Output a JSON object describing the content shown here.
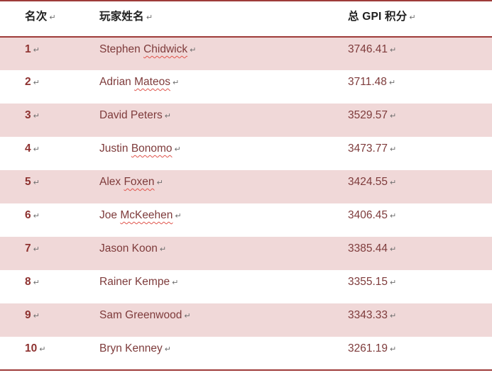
{
  "document": {
    "type": "word-processor-table",
    "formatting_marks_visible": true
  },
  "header": {
    "rank": "名次",
    "player": "玩家姓名",
    "score": "总 GPI 积分"
  },
  "paragraph_mark": "↵",
  "rows": [
    {
      "rank": "1",
      "name": "Stephen ",
      "misspelled": "Chidwick",
      "score": "3746.41"
    },
    {
      "rank": "2",
      "name": "Adrian ",
      "misspelled": "Mateos",
      "score": "3711.48"
    },
    {
      "rank": "3",
      "name": "David Peters",
      "misspelled": "",
      "score": "3529.57"
    },
    {
      "rank": "4",
      "name": "Justin ",
      "misspelled": "Bonomo",
      "score": "3473.77"
    },
    {
      "rank": "5",
      "name": "Alex ",
      "misspelled": "Foxen",
      "score": "3424.55"
    },
    {
      "rank": "6",
      "name": "Joe ",
      "misspelled": "McKeehen",
      "score": "3406.45"
    },
    {
      "rank": "7",
      "name": "Jason Koon",
      "misspelled": "",
      "score": "3385.44"
    },
    {
      "rank": "8",
      "name": "Rainer Kempe",
      "misspelled": "",
      "score": "3355.15"
    },
    {
      "rank": "9",
      "name": "Sam Greenwood",
      "misspelled": "",
      "score": "3343.33"
    },
    {
      "rank": "10",
      "name": "Bryn Kenney",
      "misspelled": "",
      "score": "3261.19"
    }
  ],
  "colors": {
    "accent_border": "#9e3b39",
    "band_pink": "#f0d8d8",
    "text_maroon": "#7e3b3b",
    "rank_red": "#8e3230",
    "header_text": "#1f1f1f",
    "pmark_gray": "#6f6f6f",
    "squiggle_red": "#e0544b",
    "page_bg": "#ffffff"
  }
}
